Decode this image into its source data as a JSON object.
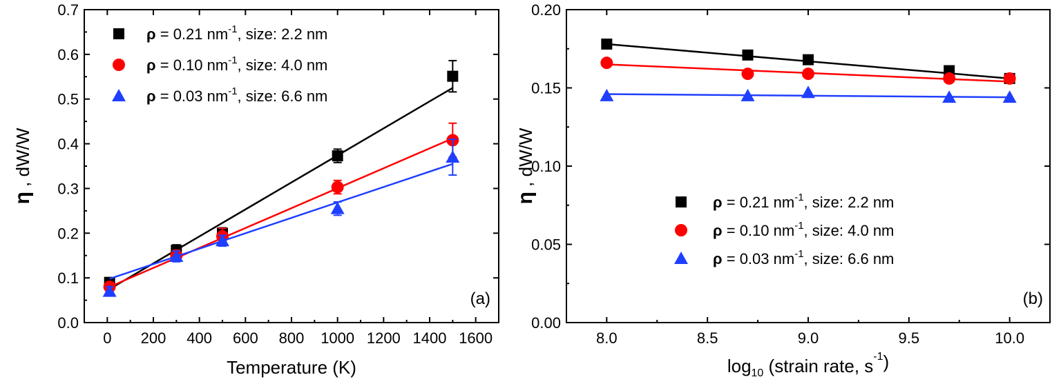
{
  "chart_data": [
    {
      "type": "scatter",
      "panel_label": "(a)",
      "xlabel": "Temperature (K)",
      "ylabel": {
        "symbol": "η",
        "text": " , dW/W"
      },
      "xlim": [
        -100,
        1700
      ],
      "ylim": [
        0,
        0.7
      ],
      "xticks": [
        0,
        200,
        400,
        600,
        800,
        1000,
        1200,
        1400,
        1600
      ],
      "yticks": [
        0.0,
        0.1,
        0.2,
        0.3,
        0.4,
        0.5,
        0.6,
        0.7
      ],
      "xtick_labels": [
        "0",
        "200",
        "400",
        "600",
        "800",
        "1000",
        "1200",
        "1400",
        "1600"
      ],
      "ytick_labels": [
        "0.0",
        "0.1",
        "0.2",
        "0.3",
        "0.4",
        "0.5",
        "0.6",
        "0.7"
      ],
      "grid": false,
      "legend_position": "top-left",
      "series": [
        {
          "name": {
            "rho": "ρ",
            "mid": " = 0.21 nm",
            "sup": "-1",
            "tail": ", size: 2.2 nm"
          },
          "marker": "square",
          "color": "#000000",
          "x": [
            10,
            300,
            500,
            1000,
            1500
          ],
          "y": [
            0.09,
            0.162,
            0.2,
            0.373,
            0.551
          ],
          "err": [
            0.01,
            0.012,
            0.012,
            0.015,
            0.035
          ],
          "fit": [
            [
              10,
              0.075
            ],
            [
              1500,
              0.525
            ]
          ]
        },
        {
          "name": {
            "rho": "ρ",
            "mid": " = 0.10 nm",
            "sup": "-1",
            "tail": ", size: 4.0 nm"
          },
          "marker": "circle",
          "color": "#ff0000",
          "x": [
            10,
            300,
            500,
            1000,
            1500
          ],
          "y": [
            0.08,
            0.15,
            0.193,
            0.303,
            0.408
          ],
          "err": [
            0.01,
            0.012,
            0.018,
            0.015,
            0.038
          ],
          "fit": [
            [
              10,
              0.08
            ],
            [
              1500,
              0.412
            ]
          ]
        },
        {
          "name": {
            "rho": "ρ",
            "mid": " = 0.03 nm",
            "sup": "-1",
            "tail": ", size: 6.6 nm"
          },
          "marker": "triangle",
          "color": "#1f3fff",
          "x": [
            10,
            300,
            500,
            1000,
            1500
          ],
          "y": [
            0.07,
            0.148,
            0.183,
            0.255,
            0.37
          ],
          "err": [
            0.01,
            0.012,
            0.012,
            0.015,
            0.04
          ],
          "fit": [
            [
              10,
              0.098
            ],
            [
              1500,
              0.355
            ]
          ]
        }
      ]
    },
    {
      "type": "scatter",
      "panel_label": "(b)",
      "xlabel": {
        "pre": "log",
        "sub": "10",
        "mid": " (strain rate, s",
        "sup": "-1",
        "post": ")"
      },
      "ylabel": {
        "symbol": "η",
        "text": " , dW/W"
      },
      "xlim": [
        7.8,
        10.2
      ],
      "ylim": [
        0,
        0.2
      ],
      "xticks": [
        8.0,
        8.5,
        9.0,
        9.5,
        10.0
      ],
      "yticks": [
        0.0,
        0.05,
        0.1,
        0.15,
        0.2
      ],
      "xtick_labels": [
        "8.0",
        "8.5",
        "9.0",
        "9.5",
        "10.0"
      ],
      "ytick_labels": [
        "0.00",
        "0.05",
        "0.10",
        "0.15",
        "0.20"
      ],
      "grid": false,
      "legend_position": "bottom-left",
      "series": [
        {
          "name": {
            "rho": "ρ",
            "mid": " = 0.21 nm",
            "sup": "-1",
            "tail": ", size: 2.2 nm"
          },
          "marker": "square",
          "color": "#000000",
          "x": [
            8.0,
            8.7,
            9.0,
            9.7,
            10.0
          ],
          "y": [
            0.178,
            0.171,
            0.168,
            0.161,
            0.156
          ],
          "fit": [
            [
              8.0,
              0.178
            ],
            [
              10.0,
              0.156
            ]
          ]
        },
        {
          "name": {
            "rho": "ρ",
            "mid": " = 0.10 nm",
            "sup": "-1",
            "tail": ", size: 4.0 nm"
          },
          "marker": "circle",
          "color": "#ff0000",
          "x": [
            8.0,
            8.7,
            9.0,
            9.7,
            10.0
          ],
          "y": [
            0.166,
            0.159,
            0.159,
            0.156,
            0.156
          ],
          "fit": [
            [
              8.0,
              0.165
            ],
            [
              10.0,
              0.154
            ]
          ]
        },
        {
          "name": {
            "rho": "ρ",
            "mid": " = 0.03 nm",
            "sup": "-1",
            "tail": ", size: 6.6 nm"
          },
          "marker": "triangle",
          "color": "#1f3fff",
          "x": [
            8.0,
            8.7,
            9.0,
            9.7,
            10.0
          ],
          "y": [
            0.145,
            0.145,
            0.147,
            0.144,
            0.144
          ],
          "fit": [
            [
              8.0,
              0.146
            ],
            [
              10.0,
              0.144
            ]
          ]
        }
      ]
    }
  ]
}
